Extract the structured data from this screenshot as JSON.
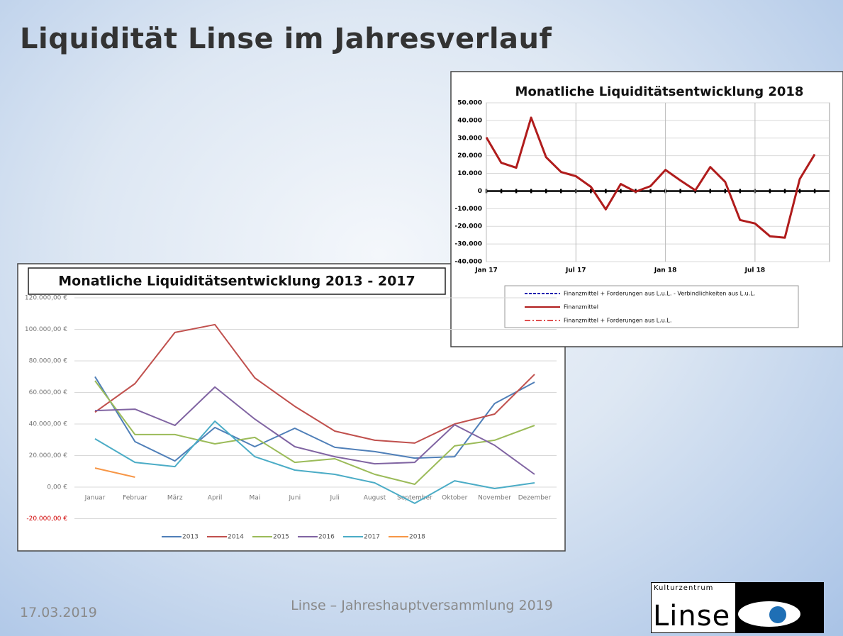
{
  "slide_title": "Liquidität Linse im Jahresverlauf",
  "date": "17.03.2019",
  "footer": "Linse – Jahreshauptversammlung 2019",
  "logo": {
    "small": "Kulturzentrum",
    "big": "Linse"
  },
  "chart_data": [
    {
      "type": "line",
      "title": "Monatliche Liquiditätsentwicklung 2013 - 2017",
      "categories": [
        "Januar",
        "Februar",
        "März",
        "April",
        "Mai",
        "Juni",
        "Juli",
        "August",
        "September",
        "Oktober",
        "November",
        "Dezember"
      ],
      "series": [
        {
          "name": "2013",
          "color": "#4f7fb8",
          "values": [
            70000,
            28800,
            16600,
            37800,
            25600,
            37300,
            25200,
            22500,
            18400,
            19300,
            53000,
            66500
          ]
        },
        {
          "name": "2014",
          "color": "#c0504d",
          "values": [
            47500,
            65600,
            98000,
            103000,
            69200,
            51200,
            35500,
            29700,
            27900,
            40000,
            46300,
            71500
          ]
        },
        {
          "name": "2015",
          "color": "#9bbb59",
          "values": [
            67400,
            33300,
            33300,
            27400,
            31500,
            15700,
            18000,
            8100,
            1800,
            26100,
            29700,
            39100
          ]
        },
        {
          "name": "2016",
          "color": "#8064a2",
          "values": [
            48500,
            49400,
            39100,
            63400,
            43100,
            25600,
            19300,
            14800,
            15700,
            39500,
            26500,
            8100
          ]
        },
        {
          "name": "2017",
          "color": "#4bacc6",
          "values": [
            30600,
            15700,
            13000,
            41800,
            19300,
            10800,
            8100,
            2700,
            -10300,
            4000,
            -900,
            2700
          ]
        },
        {
          "name": "2018",
          "color": "#f79646",
          "values": [
            12100,
            6300,
            null,
            null,
            null,
            null,
            null,
            null,
            null,
            null,
            null,
            null
          ]
        }
      ],
      "ylim": [
        -20000,
        120000
      ],
      "yticks": [
        {
          "value": -20000,
          "label": "-20.000,00 €"
        },
        {
          "value": 0,
          "label": "0,00 €"
        },
        {
          "value": 20000,
          "label": "20.000,00 €"
        },
        {
          "value": 40000,
          "label": "40.000,00 €"
        },
        {
          "value": 60000,
          "label": "60.000,00 €"
        },
        {
          "value": 80000,
          "label": "80.000,00 €"
        },
        {
          "value": 100000,
          "label": "100.000,00 €"
        },
        {
          "value": 120000,
          "label": "120.000,00 €"
        }
      ],
      "negative_tick_color": "#d00000",
      "grid": true,
      "legend": "bottom"
    },
    {
      "type": "line",
      "title": "Monatliche Liquiditätsentwicklung 2018",
      "categories": [
        "Jan 17",
        null,
        null,
        null,
        null,
        null,
        "Jul 17",
        null,
        null,
        null,
        null,
        null,
        "Jan 18",
        null,
        null,
        null,
        null,
        null,
        "Jul 18",
        null,
        null,
        null,
        null
      ],
      "series": [
        {
          "color": "#b01c1c",
          "values": [
            30400,
            16000,
            13200,
            41600,
            19200,
            10800,
            8400,
            2400,
            -10400,
            4000,
            -400,
            2800,
            12000,
            6000,
            400,
            13600,
            5200,
            -16400,
            -18400,
            -25600,
            -26400,
            6800,
            20800
          ]
        }
      ],
      "legend_entries": [
        {
          "label": "Finanzmittel + Forderungen aus L.u.L. - Verbindlichkeiten aus L.u.L.",
          "color": "#1f1fb0",
          "dash": "4 2"
        },
        {
          "label": "Finanzmittel",
          "color": "#b01c1c",
          "dash": "none"
        },
        {
          "label": "Finanzmittel + Forderungen aus L.u.L.",
          "color": "#e05050",
          "dash": "8 3 2 3"
        }
      ],
      "ylim": [
        -40000,
        50000
      ],
      "yticks": [
        {
          "value": -40000,
          "label": "-40.000"
        },
        {
          "value": -30000,
          "label": "-30.000"
        },
        {
          "value": -20000,
          "label": "-20.000"
        },
        {
          "value": -10000,
          "label": "-10.000"
        },
        0,
        {
          "value": 10000,
          "label": "10.000"
        },
        {
          "value": 20000,
          "label": "20.000"
        },
        {
          "value": 30000,
          "label": "30.000"
        },
        {
          "value": 40000,
          "label": "40.000"
        },
        {
          "value": 50000,
          "label": "50.000"
        }
      ],
      "grid": true,
      "legend": "bottom"
    }
  ]
}
